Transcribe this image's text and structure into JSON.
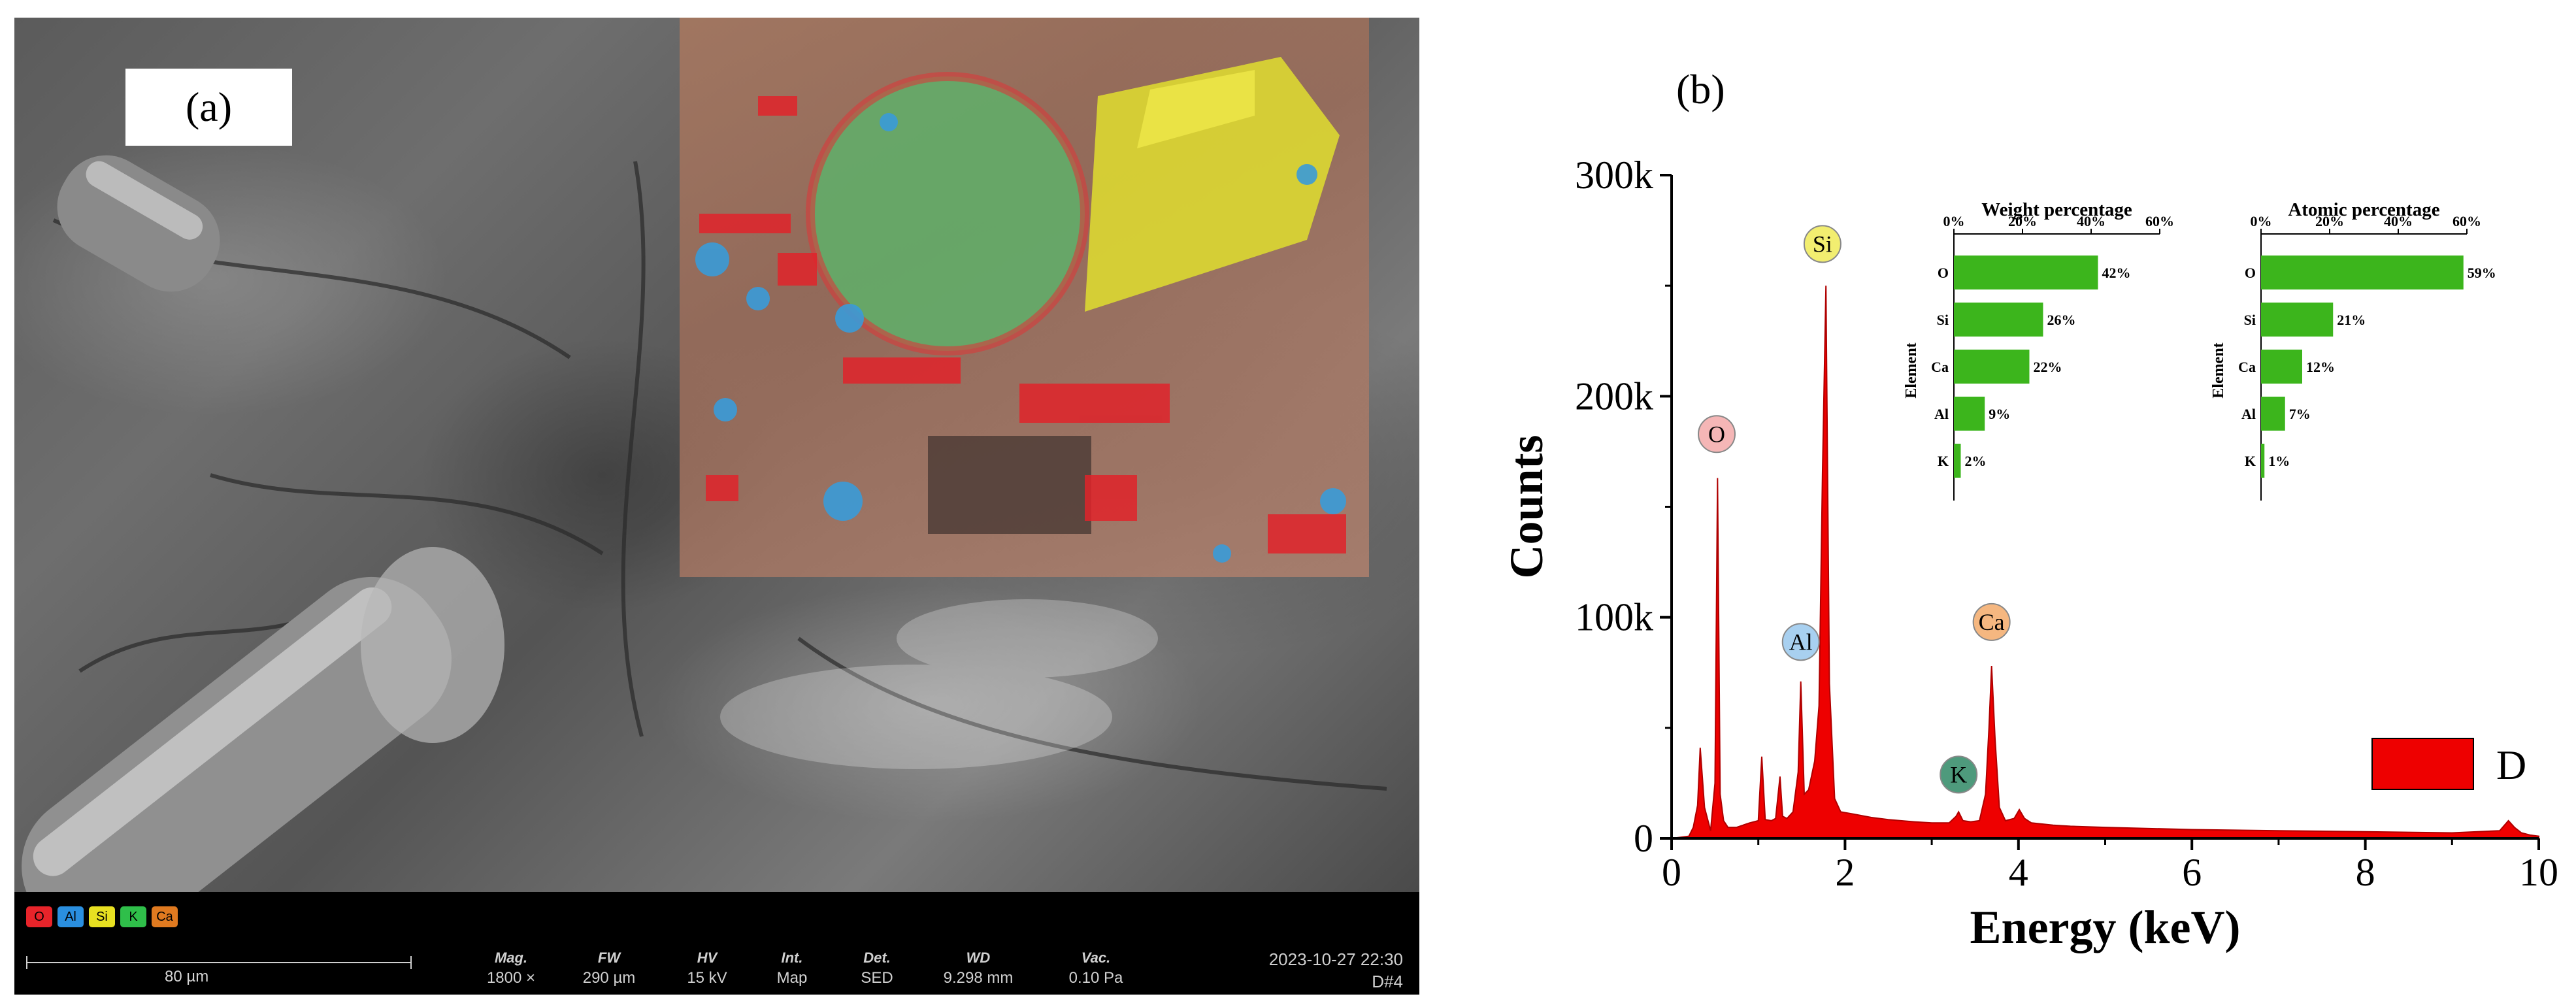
{
  "panel_a": {
    "label": "(a)",
    "element_map_legend": [
      {
        "symbol": "O",
        "color": "#e8242a"
      },
      {
        "symbol": "Al",
        "color": "#2a8fe0"
      },
      {
        "symbol": "Si",
        "color": "#e8e021"
      },
      {
        "symbol": "K",
        "color": "#2fbf4a"
      },
      {
        "symbol": "Ca",
        "color": "#e07a20"
      }
    ],
    "scale_bar": "80 µm",
    "info": [
      {
        "header": "Mag.",
        "value": "1800 ×"
      },
      {
        "header": "FW",
        "value": "290 µm"
      },
      {
        "header": "HV",
        "value": "15 kV"
      },
      {
        "header": "Int.",
        "value": "Map"
      },
      {
        "header": "Det.",
        "value": "SED"
      },
      {
        "header": "WD",
        "value": "9.298 mm"
      },
      {
        "header": "Vac.",
        "value": "0.10 Pa"
      }
    ],
    "datetime": "2023-10-27 22:30",
    "sample_id": "D#4"
  },
  "panel_b": {
    "label": "(b)"
  },
  "chart_data": [
    {
      "type": "area",
      "xlabel": "Energy  (keV)",
      "ylabel": "Counts",
      "xlim": [
        0,
        10
      ],
      "ylim": [
        0,
        300000
      ],
      "x_ticks": [
        0,
        2,
        4,
        6,
        8,
        10
      ],
      "y_ticks": [
        0,
        100000,
        200000,
        300000
      ],
      "y_tick_labels": [
        "0",
        "100k",
        "200k",
        "300k"
      ],
      "grid": false,
      "legend": {
        "position": "bottom-right",
        "entries": [
          "D"
        ]
      },
      "series": [
        {
          "name": "D",
          "color": "#ee0000",
          "x": [
            0.0,
            0.2,
            0.25,
            0.3,
            0.33,
            0.38,
            0.45,
            0.5,
            0.53,
            0.56,
            0.6,
            0.65,
            0.75,
            0.9,
            1.0,
            1.04,
            1.08,
            1.15,
            1.2,
            1.25,
            1.28,
            1.33,
            1.4,
            1.46,
            1.49,
            1.53,
            1.58,
            1.65,
            1.7,
            1.74,
            1.78,
            1.82,
            1.88,
            1.95,
            2.1,
            2.3,
            2.5,
            2.8,
            3.0,
            3.2,
            3.28,
            3.31,
            3.36,
            3.45,
            3.55,
            3.62,
            3.66,
            3.69,
            3.73,
            3.78,
            3.85,
            3.95,
            4.01,
            4.07,
            4.15,
            4.4,
            4.6,
            5.0,
            6.0,
            7.0,
            8.0,
            9.0,
            9.55,
            9.65,
            9.72,
            9.8,
            9.9,
            10.0
          ],
          "y": [
            0,
            1000,
            5000,
            15000,
            41000,
            14000,
            3500,
            25000,
            163000,
            20000,
            8000,
            5000,
            5000,
            7000,
            8000,
            37000,
            8500,
            8000,
            9000,
            28000,
            10000,
            9000,
            12000,
            30000,
            71000,
            20000,
            22000,
            35000,
            60000,
            165000,
            250000,
            70000,
            18000,
            12000,
            11000,
            9500,
            8500,
            7500,
            7000,
            7000,
            10000,
            12000,
            8000,
            7500,
            8000,
            20000,
            50000,
            78000,
            45000,
            14000,
            8000,
            9000,
            13000,
            9000,
            7000,
            6000,
            5500,
            5000,
            4000,
            3500,
            3000,
            2500,
            3500,
            8000,
            5000,
            2500,
            1500,
            1000
          ]
        }
      ],
      "annotations": [
        {
          "text": "O",
          "x": 0.52,
          "y": 174000,
          "color": "#f5b6b6"
        },
        {
          "text": "Al",
          "x": 1.49,
          "y": 80000,
          "color": "#a8d0f0"
        },
        {
          "text": "Si",
          "x": 1.74,
          "y": 260000,
          "color": "#f2ee70"
        },
        {
          "text": "K",
          "x": 3.31,
          "y": 20000,
          "color": "#4e9a7c"
        },
        {
          "text": "Ca",
          "x": 3.69,
          "y": 89000,
          "color": "#f5b780"
        }
      ]
    },
    {
      "type": "bar",
      "orientation": "horizontal",
      "title": "Weight percentage",
      "ylabel": "Element",
      "categories": [
        "O",
        "Si",
        "Ca",
        "Al",
        "K"
      ],
      "values": [
        42,
        26,
        22,
        9,
        2
      ],
      "value_labels": [
        "42%",
        "26%",
        "22%",
        "9%",
        "2%"
      ],
      "xlim": [
        0,
        60
      ],
      "x_ticks": [
        "0%",
        "20%",
        "40%",
        "60%"
      ],
      "color": "#3cb51c"
    },
    {
      "type": "bar",
      "orientation": "horizontal",
      "title": "Atomic percentage",
      "ylabel": "Element",
      "categories": [
        "O",
        "Si",
        "Ca",
        "Al",
        "K"
      ],
      "values": [
        59,
        21,
        12,
        7,
        1
      ],
      "value_labels": [
        "59%",
        "21%",
        "12%",
        "7%",
        "1%"
      ],
      "xlim": [
        0,
        60
      ],
      "x_ticks": [
        "0%",
        "20%",
        "40%",
        "60%"
      ],
      "color": "#3cb51c"
    }
  ]
}
